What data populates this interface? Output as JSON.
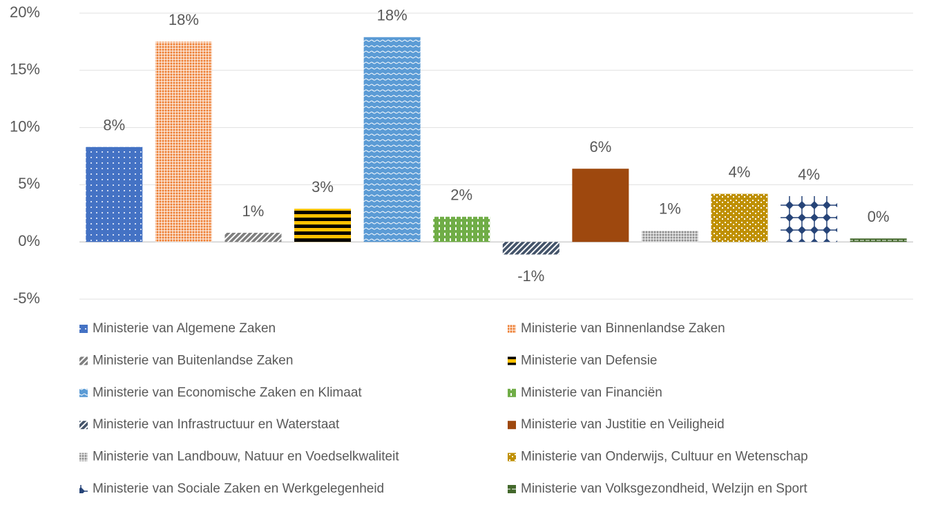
{
  "chart_data": {
    "type": "bar",
    "categories": [
      "Ministerie van Algemene Zaken",
      "Ministerie van Binnenlandse Zaken",
      "Ministerie van Buitenlandse Zaken",
      "Ministerie van Defensie",
      "Ministerie van Economische Zaken en Klimaat",
      "Ministerie van Financiën",
      "Ministerie van Infrastructuur en Waterstaat",
      "Ministerie van Justitie en Veiligheid",
      "Ministerie van Landbouw, Natuur en Voedselkwaliteit",
      "Ministerie van Onderwijs, Cultuur en Wetenschap",
      "Ministerie van Sociale Zaken en Werkgelegenheid",
      "Ministerie van Volksgezondheid, Welzijn en Sport"
    ],
    "values": [
      8.3,
      17.5,
      0.8,
      2.9,
      17.9,
      2.2,
      -1.1,
      6.4,
      1.0,
      4.2,
      4.0,
      0.3
    ],
    "value_labels": [
      "8%",
      "18%",
      "1%",
      "3%",
      "18%",
      "2%",
      "-1%",
      "6%",
      "1%",
      "4%",
      "4%",
      "0%"
    ],
    "colors": [
      "#4472c4",
      "#ed7d31",
      "#7f7f7f",
      "#ffc000",
      "#5b9bd5",
      "#70ad47",
      "#44546a",
      "#9e480e",
      "#8c8c8c",
      "#bf9000",
      "#264478",
      "#43682b"
    ],
    "ylim": [
      -5,
      20
    ],
    "yticks": [
      {
        "value": -5,
        "label": "-5%"
      },
      {
        "value": 0,
        "label": "0%"
      },
      {
        "value": 5,
        "label": "5%"
      },
      {
        "value": 10,
        "label": "10%"
      },
      {
        "value": 15,
        "label": "15%"
      },
      {
        "value": 20,
        "label": "20%"
      }
    ],
    "grid": true,
    "legend": "bottom"
  }
}
